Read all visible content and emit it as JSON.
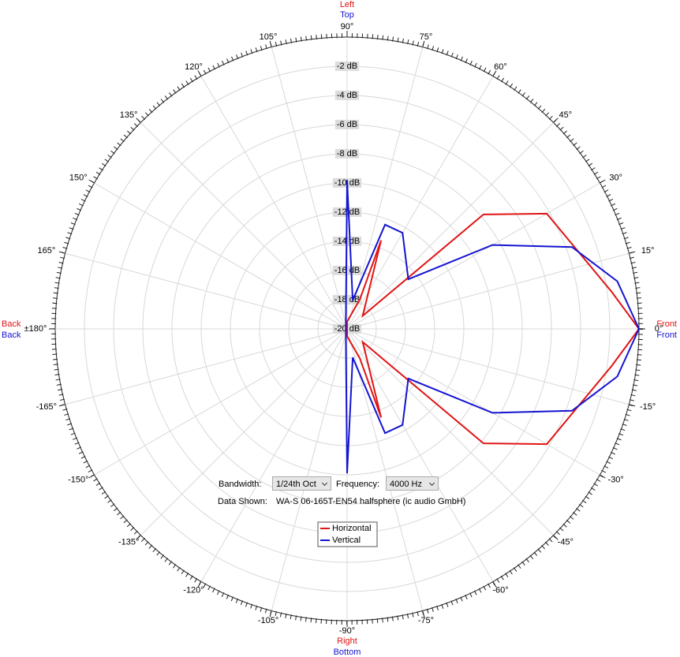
{
  "chart_data": {
    "type": "polar",
    "rlim": [
      -20,
      0
    ],
    "rticks": [
      {
        "value": -20,
        "label": "-20 dB"
      },
      {
        "value": -18,
        "label": "-18 dB"
      },
      {
        "value": -16,
        "label": "-16 dB"
      },
      {
        "value": -14,
        "label": "-14 dB"
      },
      {
        "value": -12,
        "label": "-12 dB"
      },
      {
        "value": -10,
        "label": "-10 dB"
      },
      {
        "value": -8,
        "label": "-8 dB"
      },
      {
        "value": -6,
        "label": "-6 dB"
      },
      {
        "value": -4,
        "label": "-4 dB"
      },
      {
        "value": -2,
        "label": "-2 dB"
      }
    ],
    "thetaticks": [
      {
        "value": 0,
        "label": "0°"
      },
      {
        "value": 15,
        "label": "15°"
      },
      {
        "value": 30,
        "label": "30°"
      },
      {
        "value": 45,
        "label": "45°"
      },
      {
        "value": 60,
        "label": "60°"
      },
      {
        "value": 75,
        "label": "75°"
      },
      {
        "value": 90,
        "label": "90°"
      },
      {
        "value": 105,
        "label": "105°"
      },
      {
        "value": 120,
        "label": "120°"
      },
      {
        "value": 135,
        "label": "135°"
      },
      {
        "value": 150,
        "label": "150°"
      },
      {
        "value": 165,
        "label": "165°"
      },
      {
        "value": 180,
        "label": "±180°"
      },
      {
        "value": -165,
        "label": "-165°"
      },
      {
        "value": -150,
        "label": "-150°"
      },
      {
        "value": -135,
        "label": "-135°"
      },
      {
        "value": -120,
        "label": "-120°"
      },
      {
        "value": -105,
        "label": "-105°"
      },
      {
        "value": -90,
        "label": "-90°"
      },
      {
        "value": -75,
        "label": "-75°"
      },
      {
        "value": -60,
        "label": "-60°"
      },
      {
        "value": -45,
        "label": "-45°"
      },
      {
        "value": -30,
        "label": "-30°"
      },
      {
        "value": -15,
        "label": "-15°"
      }
    ],
    "grid": true,
    "direction_labels": {
      "top": [
        "Left",
        "Top"
      ],
      "bottom": [
        "Right",
        "Bottom"
      ],
      "left": [
        "Back",
        "Back"
      ],
      "right": [
        "Front",
        "Front"
      ]
    },
    "series": [
      {
        "name": "Horizontal",
        "color": "#e01414",
        "theta": [
          0,
          8,
          30,
          40,
          40,
          69,
          66.6,
          90,
          -90,
          -66.6,
          -69,
          -40,
          -40,
          -30,
          -8
        ],
        "values": [
          0,
          -1.7,
          -4.2,
          -7.8,
          -18.6,
          -13.5,
          -17.8,
          -19.5,
          -19.5,
          -17.8,
          -13.5,
          -18.6,
          -7.8,
          -4.2,
          -1.7
        ]
      },
      {
        "name": "Vertical",
        "color": "#1414d2",
        "theta": [
          0,
          10,
          20,
          30,
          39,
          60,
          70,
          79,
          90,
          100,
          -100,
          -90,
          -79,
          -70,
          -60,
          -39,
          -30,
          -20,
          -10
        ],
        "values": [
          0,
          -1.2,
          -3.6,
          -8.5,
          -14.6,
          -12.4,
          -12.4,
          -18,
          -9.8,
          -19.5,
          -19.5,
          -10.1,
          -18,
          -12.4,
          -12.4,
          -14.6,
          -8.5,
          -3.6,
          -1.2
        ]
      }
    ]
  },
  "controls": {
    "bandwidth_label": "Bandwidth:",
    "bandwidth": "1/24th Oct",
    "frequency_label": "Frequency:",
    "frequency": "4000 Hz",
    "data_shown_label": "Data Shown:",
    "data_shown": "WA-S 06-165T-EN54 halfsphere (ic audio GmbH)"
  }
}
